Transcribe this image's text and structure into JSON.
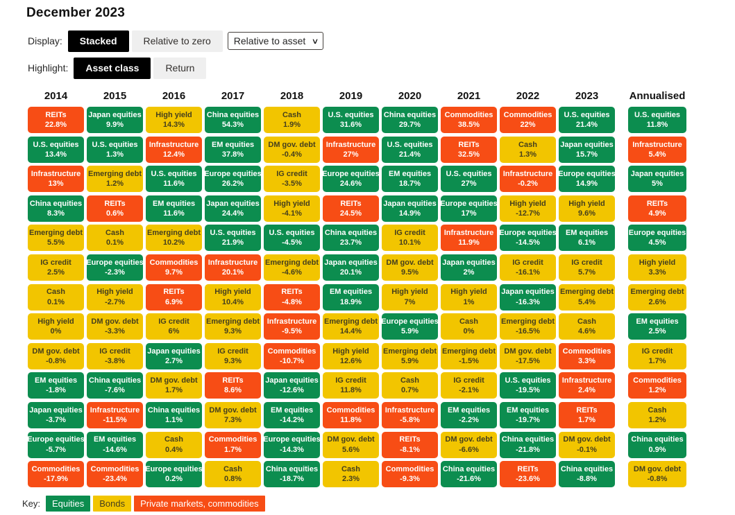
{
  "title": "December 2023",
  "controls": {
    "display_label": "Display:",
    "display_options": [
      {
        "label": "Stacked",
        "selected": true
      },
      {
        "label": "Relative to zero",
        "selected": false
      }
    ],
    "display_select": {
      "value": "Relative to asset"
    },
    "highlight_label": "Highlight:",
    "highlight_options": [
      {
        "label": "Asset class",
        "selected": true
      },
      {
        "label": "Return",
        "selected": false
      }
    ]
  },
  "key": {
    "label": "Key:",
    "items": [
      {
        "label": "Equities",
        "category": "equities"
      },
      {
        "label": "Bonds",
        "category": "bonds"
      },
      {
        "label": "Private markets, commodities",
        "category": "private"
      }
    ]
  },
  "colors": {
    "equities": "#0c8d4f",
    "bonds": "#f2c500",
    "private": "#f74d15",
    "bonds_text": "#453f1d",
    "selected_button_bg": "#000000",
    "unselected_button_bg": "#efefef"
  },
  "chart_data": {
    "type": "table",
    "description": "Asset class returns quilt: each column lists asset classes ranked by return for that year; cell = [asset, return, category]",
    "categories_legend": {
      "equities": "Equities",
      "bonds": "Bonds",
      "private": "Private markets, commodities"
    },
    "columns": [
      {
        "year": "2014",
        "cells": [
          [
            "REITs",
            "22.8%",
            "private"
          ],
          [
            "U.S. equities",
            "13.4%",
            "equities"
          ],
          [
            "Infrastructure",
            "13%",
            "private"
          ],
          [
            "China equities",
            "8.3%",
            "equities"
          ],
          [
            "Emerging debt",
            "5.5%",
            "bonds"
          ],
          [
            "IG credit",
            "2.5%",
            "bonds"
          ],
          [
            "Cash",
            "0.1%",
            "bonds"
          ],
          [
            "High yield",
            "0%",
            "bonds"
          ],
          [
            "DM gov. debt",
            "-0.8%",
            "bonds"
          ],
          [
            "EM equities",
            "-1.8%",
            "equities"
          ],
          [
            "Japan equities",
            "-3.7%",
            "equities"
          ],
          [
            "Europe equities",
            "-5.7%",
            "equities"
          ],
          [
            "Commodities",
            "-17.9%",
            "private"
          ]
        ]
      },
      {
        "year": "2015",
        "cells": [
          [
            "Japan equities",
            "9.9%",
            "equities"
          ],
          [
            "U.S. equities",
            "1.3%",
            "equities"
          ],
          [
            "Emerging debt",
            "1.2%",
            "bonds"
          ],
          [
            "REITs",
            "0.6%",
            "private"
          ],
          [
            "Cash",
            "0.1%",
            "bonds"
          ],
          [
            "Europe equities",
            "-2.3%",
            "equities"
          ],
          [
            "High yield",
            "-2.7%",
            "bonds"
          ],
          [
            "DM gov. debt",
            "-3.3%",
            "bonds"
          ],
          [
            "IG credit",
            "-3.8%",
            "bonds"
          ],
          [
            "China equities",
            "-7.6%",
            "equities"
          ],
          [
            "Infrastructure",
            "-11.5%",
            "private"
          ],
          [
            "EM equities",
            "-14.6%",
            "equities"
          ],
          [
            "Commodities",
            "-23.4%",
            "private"
          ]
        ]
      },
      {
        "year": "2016",
        "cells": [
          [
            "High yield",
            "14.3%",
            "bonds"
          ],
          [
            "Infrastructure",
            "12.4%",
            "private"
          ],
          [
            "U.S. equities",
            "11.6%",
            "equities"
          ],
          [
            "EM equities",
            "11.6%",
            "equities"
          ],
          [
            "Emerging debt",
            "10.2%",
            "bonds"
          ],
          [
            "Commodities",
            "9.7%",
            "private"
          ],
          [
            "REITs",
            "6.9%",
            "private"
          ],
          [
            "IG credit",
            "6%",
            "bonds"
          ],
          [
            "Japan equities",
            "2.7%",
            "equities"
          ],
          [
            "DM gov. debt",
            "1.7%",
            "bonds"
          ],
          [
            "China equities",
            "1.1%",
            "equities"
          ],
          [
            "Cash",
            "0.4%",
            "bonds"
          ],
          [
            "Europe equities",
            "0.2%",
            "equities"
          ]
        ]
      },
      {
        "year": "2017",
        "cells": [
          [
            "China equities",
            "54.3%",
            "equities"
          ],
          [
            "EM equities",
            "37.8%",
            "equities"
          ],
          [
            "Europe equities",
            "26.2%",
            "equities"
          ],
          [
            "Japan equities",
            "24.4%",
            "equities"
          ],
          [
            "U.S. equities",
            "21.9%",
            "equities"
          ],
          [
            "Infrastructure",
            "20.1%",
            "private"
          ],
          [
            "High yield",
            "10.4%",
            "bonds"
          ],
          [
            "Emerging debt",
            "9.3%",
            "bonds"
          ],
          [
            "IG credit",
            "9.3%",
            "bonds"
          ],
          [
            "REITs",
            "8.6%",
            "private"
          ],
          [
            "DM gov. debt",
            "7.3%",
            "bonds"
          ],
          [
            "Commodities",
            "1.7%",
            "private"
          ],
          [
            "Cash",
            "0.8%",
            "bonds"
          ]
        ]
      },
      {
        "year": "2018",
        "cells": [
          [
            "Cash",
            "1.9%",
            "bonds"
          ],
          [
            "DM gov. debt",
            "-0.4%",
            "bonds"
          ],
          [
            "IG credit",
            "-3.5%",
            "bonds"
          ],
          [
            "High yield",
            "-4.1%",
            "bonds"
          ],
          [
            "U.S. equities",
            "-4.5%",
            "equities"
          ],
          [
            "Emerging debt",
            "-4.6%",
            "bonds"
          ],
          [
            "REITs",
            "-4.8%",
            "private"
          ],
          [
            "Infrastructure",
            "-9.5%",
            "private"
          ],
          [
            "Commodities",
            "-10.7%",
            "private"
          ],
          [
            "Japan equities",
            "-12.6%",
            "equities"
          ],
          [
            "EM equities",
            "-14.2%",
            "equities"
          ],
          [
            "Europe equities",
            "-14.3%",
            "equities"
          ],
          [
            "China equities",
            "-18.7%",
            "equities"
          ]
        ]
      },
      {
        "year": "2019",
        "cells": [
          [
            "U.S. equities",
            "31.6%",
            "equities"
          ],
          [
            "Infrastructure",
            "27%",
            "private"
          ],
          [
            "Europe equities",
            "24.6%",
            "equities"
          ],
          [
            "REITs",
            "24.5%",
            "private"
          ],
          [
            "China equities",
            "23.7%",
            "equities"
          ],
          [
            "Japan equities",
            "20.1%",
            "equities"
          ],
          [
            "EM equities",
            "18.9%",
            "equities"
          ],
          [
            "Emerging debt",
            "14.4%",
            "bonds"
          ],
          [
            "High yield",
            "12.6%",
            "bonds"
          ],
          [
            "IG credit",
            "11.8%",
            "bonds"
          ],
          [
            "Commodities",
            "11.8%",
            "private"
          ],
          [
            "DM gov. debt",
            "5.6%",
            "bonds"
          ],
          [
            "Cash",
            "2.3%",
            "bonds"
          ]
        ]
      },
      {
        "year": "2020",
        "cells": [
          [
            "China equities",
            "29.7%",
            "equities"
          ],
          [
            "U.S. equities",
            "21.4%",
            "equities"
          ],
          [
            "EM equities",
            "18.7%",
            "equities"
          ],
          [
            "Japan equities",
            "14.9%",
            "equities"
          ],
          [
            "IG credit",
            "10.1%",
            "bonds"
          ],
          [
            "DM gov. debt",
            "9.5%",
            "bonds"
          ],
          [
            "High yield",
            "7%",
            "bonds"
          ],
          [
            "Europe equities",
            "5.9%",
            "equities"
          ],
          [
            "Emerging debt",
            "5.9%",
            "bonds"
          ],
          [
            "Cash",
            "0.7%",
            "bonds"
          ],
          [
            "Infrastructure",
            "-5.8%",
            "private"
          ],
          [
            "REITs",
            "-8.1%",
            "private"
          ],
          [
            "Commodities",
            "-9.3%",
            "private"
          ]
        ]
      },
      {
        "year": "2021",
        "cells": [
          [
            "Commodities",
            "38.5%",
            "private"
          ],
          [
            "REITs",
            "32.5%",
            "private"
          ],
          [
            "U.S. equities",
            "27%",
            "equities"
          ],
          [
            "Europe equities",
            "17%",
            "equities"
          ],
          [
            "Infrastructure",
            "11.9%",
            "private"
          ],
          [
            "Japan equities",
            "2%",
            "equities"
          ],
          [
            "High yield",
            "1%",
            "bonds"
          ],
          [
            "Cash",
            "0%",
            "bonds"
          ],
          [
            "Emerging debt",
            "-1.5%",
            "bonds"
          ],
          [
            "IG credit",
            "-2.1%",
            "bonds"
          ],
          [
            "EM equities",
            "-2.2%",
            "equities"
          ],
          [
            "DM gov. debt",
            "-6.6%",
            "bonds"
          ],
          [
            "China equities",
            "-21.6%",
            "equities"
          ]
        ]
      },
      {
        "year": "2022",
        "cells": [
          [
            "Commodities",
            "22%",
            "private"
          ],
          [
            "Cash",
            "1.3%",
            "bonds"
          ],
          [
            "Infrastructure",
            "-0.2%",
            "private"
          ],
          [
            "High yield",
            "-12.7%",
            "bonds"
          ],
          [
            "Europe equities",
            "-14.5%",
            "equities"
          ],
          [
            "IG credit",
            "-16.1%",
            "bonds"
          ],
          [
            "Japan equities",
            "-16.3%",
            "equities"
          ],
          [
            "Emerging debt",
            "-16.5%",
            "bonds"
          ],
          [
            "DM gov. debt",
            "-17.5%",
            "bonds"
          ],
          [
            "U.S. equities",
            "-19.5%",
            "equities"
          ],
          [
            "EM equities",
            "-19.7%",
            "equities"
          ],
          [
            "China equities",
            "-21.8%",
            "equities"
          ],
          [
            "REITs",
            "-23.6%",
            "private"
          ]
        ]
      },
      {
        "year": "2023",
        "cells": [
          [
            "U.S. equities",
            "21.4%",
            "equities"
          ],
          [
            "Japan equities",
            "15.7%",
            "equities"
          ],
          [
            "Europe equities",
            "14.9%",
            "equities"
          ],
          [
            "High yield",
            "9.6%",
            "bonds"
          ],
          [
            "EM equities",
            "6.1%",
            "equities"
          ],
          [
            "IG credit",
            "5.7%",
            "bonds"
          ],
          [
            "Emerging debt",
            "5.4%",
            "bonds"
          ],
          [
            "Cash",
            "4.6%",
            "bonds"
          ],
          [
            "Commodities",
            "3.3%",
            "private"
          ],
          [
            "Infrastructure",
            "2.4%",
            "private"
          ],
          [
            "REITs",
            "1.7%",
            "private"
          ],
          [
            "DM gov. debt",
            "-0.1%",
            "bonds"
          ],
          [
            "China equities",
            "-8.8%",
            "equities"
          ]
        ]
      },
      {
        "year": "Annualised",
        "cells": [
          [
            "U.S. equities",
            "11.8%",
            "equities"
          ],
          [
            "Infrastructure",
            "5.4%",
            "private"
          ],
          [
            "Japan equities",
            "5%",
            "equities"
          ],
          [
            "REITs",
            "4.9%",
            "private"
          ],
          [
            "Europe equities",
            "4.5%",
            "equities"
          ],
          [
            "High yield",
            "3.3%",
            "bonds"
          ],
          [
            "Emerging debt",
            "2.6%",
            "bonds"
          ],
          [
            "EM equities",
            "2.5%",
            "equities"
          ],
          [
            "IG credit",
            "1.7%",
            "bonds"
          ],
          [
            "Commodities",
            "1.2%",
            "private"
          ],
          [
            "Cash",
            "1.2%",
            "bonds"
          ],
          [
            "China equities",
            "0.9%",
            "equities"
          ],
          [
            "DM gov. debt",
            "-0.8%",
            "bonds"
          ]
        ]
      }
    ]
  }
}
